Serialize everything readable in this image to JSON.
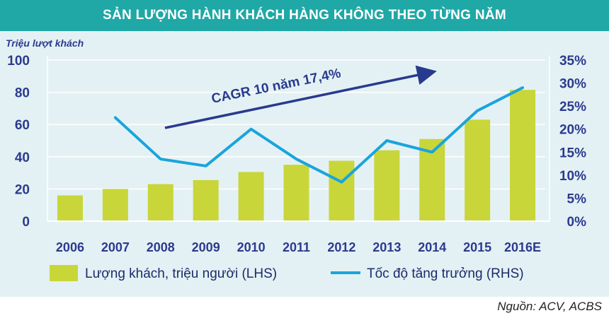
{
  "banner": {
    "title": "SẢN LƯỢNG HÀNH KHÁCH HÀNG KHÔNG THEO TỪNG NĂM"
  },
  "source": "Nguồn: ACV, ACBS",
  "colors": {
    "banner": "#1fa8a6",
    "panel": "#e4f1f4",
    "bars": "#c8d639",
    "line": "#1aa4dd",
    "axis_text": "#2b3a8f",
    "arrow": "#283a8e"
  },
  "chart_data": {
    "type": "bar",
    "categories": [
      "2006",
      "2007",
      "2008",
      "2009",
      "2010",
      "2011",
      "2012",
      "2013",
      "2014",
      "2015",
      "2016E"
    ],
    "series": [
      {
        "name": "Lượng khách, triệu người (LHS)",
        "type": "bar",
        "axis": "left",
        "values": [
          16,
          20,
          23,
          25.5,
          30.5,
          35,
          37.5,
          44,
          51,
          63,
          81.5
        ]
      },
      {
        "name": "Tốc độ tăng trưởng (RHS)",
        "type": "line",
        "axis": "right",
        "values": [
          null,
          22.5,
          13.5,
          12,
          20,
          13.5,
          8.5,
          17.5,
          15,
          24,
          29
        ]
      }
    ],
    "ylabel": "Triệu lượt khách",
    "ylim": [
      0,
      100
    ],
    "y_ticks": [
      "0",
      "20",
      "40",
      "60",
      "80",
      "100"
    ],
    "y2lim": [
      0,
      35
    ],
    "y2_ticks": [
      "0%",
      "5%",
      "10%",
      "15%",
      "20%",
      "25%",
      "30%",
      "35%"
    ],
    "annotation": "CAGR 10 năm 17,4%",
    "grid": "horizontal",
    "legend_position": "bottom"
  }
}
